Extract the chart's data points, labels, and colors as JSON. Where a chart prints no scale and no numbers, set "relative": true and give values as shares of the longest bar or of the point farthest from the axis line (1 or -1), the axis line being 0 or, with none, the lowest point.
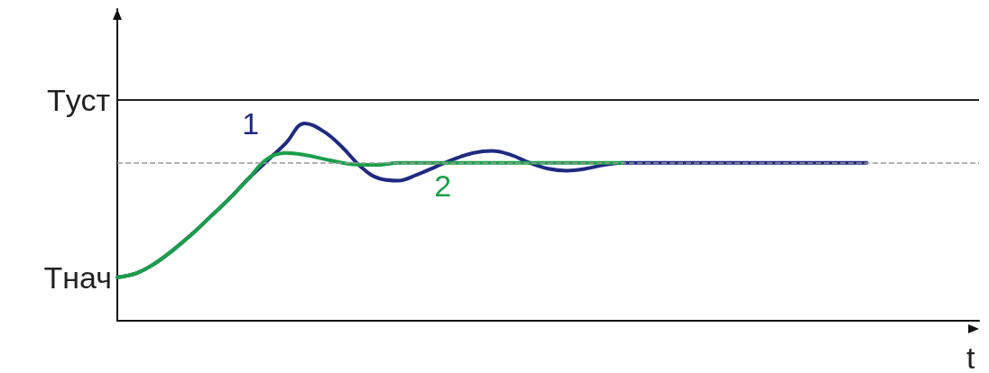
{
  "chart_data": {
    "type": "line",
    "relative": true,
    "xlabel": "t",
    "categories": [
      null,
      null,
      null,
      null,
      null,
      null,
      null,
      null,
      null,
      null,
      null,
      null,
      null,
      null,
      null,
      null,
      null,
      null,
      null,
      null,
      null,
      null,
      null,
      null,
      null,
      null,
      null,
      null,
      null,
      null,
      null,
      null,
      null,
      null,
      null,
      null,
      null,
      null,
      null,
      null,
      null
    ],
    "series": [
      {
        "name": "1",
        "color": "#1f2a80",
        "values": [
          0.22,
          0.24,
          0.29,
          0.36,
          0.44,
          0.53,
          0.62,
          0.72,
          0.81,
          0.9,
          1.0,
          0.96,
          0.88,
          0.78,
          0.72,
          0.71,
          0.74,
          0.78,
          0.82,
          0.85,
          0.86,
          0.84,
          0.8,
          0.77,
          0.76,
          0.77,
          0.79,
          0.8,
          0.8,
          0.8,
          0.8,
          0.8,
          0.8,
          0.8,
          0.8,
          0.8,
          0.8,
          0.8,
          0.8,
          0.8,
          0.8
        ]
      },
      {
        "name": "2",
        "color": "#1aa04a",
        "values": [
          0.22,
          0.24,
          0.29,
          0.36,
          0.44,
          0.53,
          0.62,
          0.72,
          0.82,
          0.85,
          0.84,
          0.82,
          0.8,
          0.79,
          0.79,
          0.8,
          0.8,
          0.8,
          0.8,
          0.8,
          0.8,
          0.8,
          0.8,
          0.8,
          0.8,
          0.8,
          0.8,
          0.8,
          null,
          null,
          null,
          null,
          null,
          null,
          null,
          null,
          null,
          null,
          null,
          null,
          null
        ]
      }
    ],
    "ref_lines": [
      {
        "axis": "y",
        "value": 1.12,
        "label": "Tуст",
        "color": "#222222",
        "line_style": "solid"
      },
      {
        "axis": "y",
        "value": 0.8,
        "label": null,
        "color": "#999999",
        "line_style": "dashed"
      }
    ],
    "annotations": [
      "Tнач"
    ],
    "marker": "none",
    "grid": false,
    "legend": false
  }
}
